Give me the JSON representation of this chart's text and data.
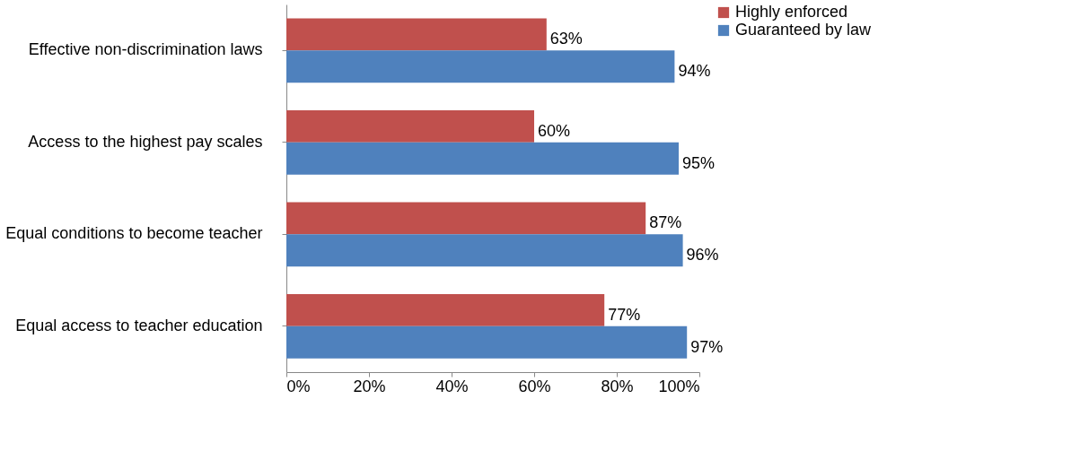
{
  "chart_data": {
    "type": "bar",
    "orientation": "horizontal",
    "categories": [
      "Effective non-discrimination laws",
      "Access to the highest pay scales",
      "Equal conditions to become teacher",
      "Equal access to teacher education"
    ],
    "series": [
      {
        "name": "Highly enforced",
        "color": "#c0504d",
        "values": [
          63,
          60,
          87,
          77
        ],
        "value_labels": [
          "63%",
          "60%",
          "87%",
          "77%"
        ]
      },
      {
        "name": "Guaranteed by law",
        "color": "#4f81bd",
        "values": [
          94,
          95,
          96,
          97
        ],
        "value_labels": [
          "94%",
          "95%",
          "96%",
          "97%"
        ]
      }
    ],
    "xlim": [
      0,
      100
    ],
    "xticks": [
      {
        "value": 0,
        "label": "0%"
      },
      {
        "value": 20,
        "label": "20%"
      },
      {
        "value": 40,
        "label": "40%"
      },
      {
        "value": 60,
        "label": "60%"
      },
      {
        "value": 80,
        "label": "80%"
      },
      {
        "value": 100,
        "label": "100%"
      }
    ],
    "grid": false,
    "legend": "right"
  }
}
